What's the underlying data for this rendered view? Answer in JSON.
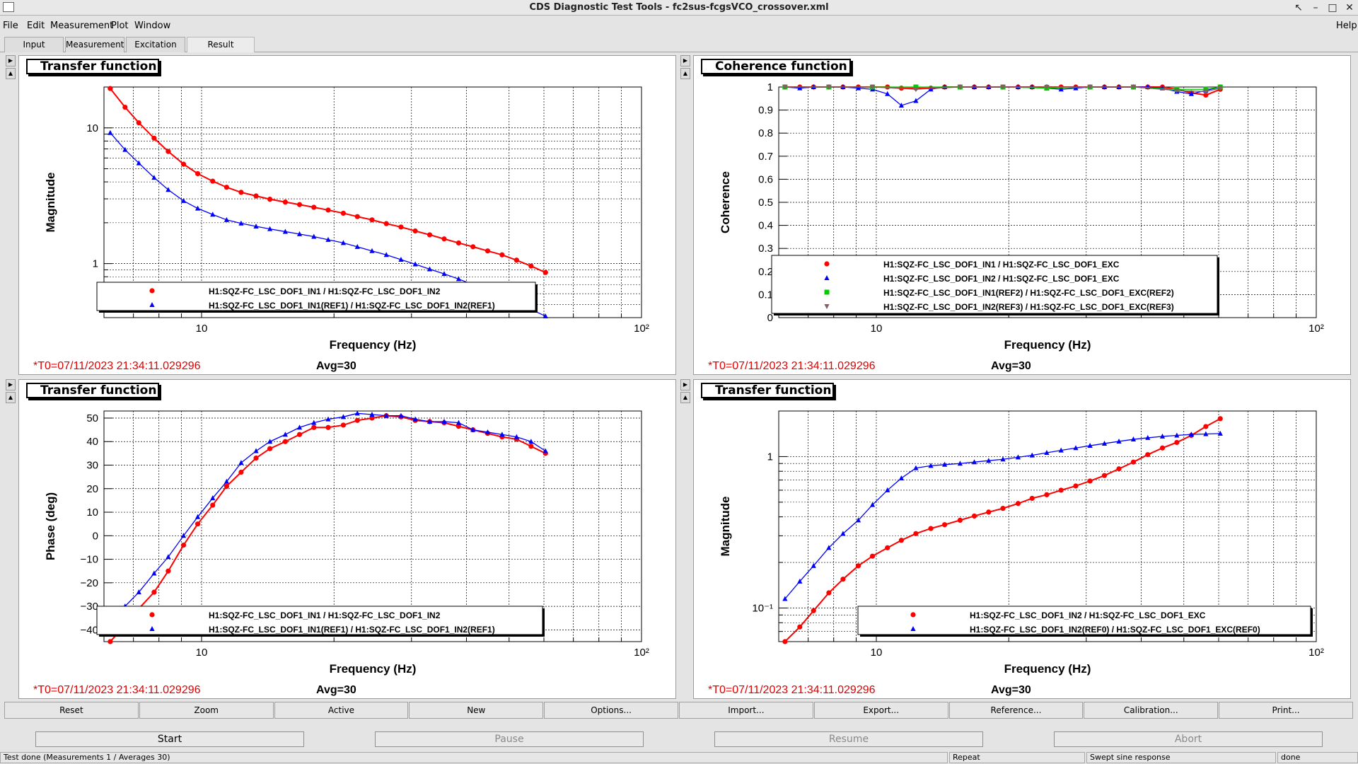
{
  "window": {
    "title": "CDS Diagnostic Test Tools - fc2sus-fcgsVCO_crossover.xml",
    "controls": [
      "↖",
      "–",
      "□",
      "✕"
    ]
  },
  "menu": {
    "items": [
      "File",
      "Edit",
      "Measurement",
      "Plot",
      "Window"
    ],
    "help": "Help"
  },
  "tabs": [
    "Input",
    "Measurement",
    "Excitation",
    "Result"
  ],
  "panels": [
    {
      "label": "Transfer function",
      "t0": "*T0=07/11/2023 21:34:11.029296",
      "avg": "Avg=30",
      "chart_data": {
        "type": "line",
        "xscale": "log",
        "yscale": "log",
        "xlim": [
          6,
          100
        ],
        "ylim": [
          0.4,
          20
        ],
        "xlabel": "Frequency (Hz)",
        "ylabel": "Magnitude",
        "xticklabels": [
          "10",
          "10²"
        ],
        "yticklabels": [
          "1",
          "10"
        ],
        "grid": true,
        "legend": "bottom-left",
        "series": [
          {
            "name": "H1:SQZ-FC_LSC_DOF1_IN1 / H1:SQZ-FC_LSC_DOF1_IN2",
            "color": "#ff0000",
            "marker": "circle",
            "x": [
              6.2,
              6.7,
              7.2,
              7.8,
              8.4,
              9.1,
              9.8,
              10.6,
              11.4,
              12.3,
              13.3,
              14.3,
              15.5,
              16.7,
              18.0,
              19.4,
              21.0,
              22.6,
              24.4,
              26.3,
              28.4,
              30.6,
              33.0,
              35.6,
              38.4,
              41.4,
              44.7,
              48.2,
              52.0,
              56.1,
              60.5
            ],
            "y": [
              19.5,
              14.2,
              10.9,
              8.4,
              6.7,
              5.4,
              4.6,
              4.05,
              3.65,
              3.35,
              3.15,
              2.98,
              2.84,
              2.72,
              2.6,
              2.48,
              2.35,
              2.22,
              2.1,
              1.97,
              1.86,
              1.74,
              1.63,
              1.52,
              1.42,
              1.33,
              1.24,
              1.16,
              1.06,
              0.96,
              0.86
            ]
          },
          {
            "name": "H1:SQZ-FC_LSC_DOF1_IN1(REF1) / H1:SQZ-FC_LSC_DOF1_IN2(REF1)",
            "color": "#0000ff",
            "marker": "triangle",
            "x": [
              6.2,
              6.7,
              7.2,
              7.8,
              8.4,
              9.1,
              9.8,
              10.6,
              11.4,
              12.3,
              13.3,
              14.3,
              15.5,
              16.7,
              18.0,
              19.4,
              21.0,
              22.6,
              24.4,
              26.3,
              28.4,
              30.6,
              33.0,
              35.6,
              38.4,
              41.4,
              44.7,
              48.2,
              52.0,
              56.1,
              60.5
            ],
            "y": [
              9.2,
              6.9,
              5.5,
              4.3,
              3.5,
              2.9,
              2.55,
              2.3,
              2.1,
              1.98,
              1.88,
              1.8,
              1.72,
              1.65,
              1.58,
              1.5,
              1.42,
              1.33,
              1.24,
              1.16,
              1.07,
              0.99,
              0.91,
              0.84,
              0.77,
              0.7,
              0.64,
              0.58,
              0.52,
              0.46,
              0.41
            ]
          }
        ]
      }
    },
    {
      "label": "Coherence function",
      "t0": "*T0=07/11/2023 21:34:11.029296",
      "avg": "Avg=30",
      "chart_data": {
        "type": "line",
        "xscale": "log",
        "yscale": "linear",
        "xlim": [
          6,
          100
        ],
        "ylim": [
          0,
          1
        ],
        "xlabel": "Frequency (Hz)",
        "ylabel": "Coherence",
        "xticklabels": [
          "10",
          "10²"
        ],
        "yticklabels": [
          "0",
          "0.1",
          "0.2",
          "0.3",
          "0.4",
          "0.5",
          "0.6",
          "0.7",
          "0.8",
          "0.9",
          "1"
        ],
        "grid": true,
        "legend": "bottom-left",
        "series": [
          {
            "name": "H1:SQZ-FC_LSC_DOF1_IN1 / H1:SQZ-FC_LSC_DOF1_EXC",
            "color": "#ff0000",
            "marker": "circle",
            "x": [
              6.2,
              6.7,
              7.2,
              7.8,
              8.4,
              9.1,
              9.8,
              10.6,
              11.4,
              12.3,
              13.3,
              14.3,
              15.5,
              16.7,
              18.0,
              19.4,
              21.0,
              22.6,
              24.4,
              26.3,
              28.4,
              30.6,
              33.0,
              35.6,
              38.4,
              41.4,
              44.7,
              48.2,
              52.0,
              56.1,
              60.5
            ],
            "y": [
              1.0,
              1.0,
              1.0,
              1.0,
              1.0,
              1.0,
              1.0,
              1.0,
              0.995,
              0.995,
              0.995,
              1.0,
              1.0,
              1.0,
              1.0,
              1.0,
              1.0,
              1.0,
              1.0,
              1.0,
              1.0,
              1.0,
              1.0,
              1.0,
              1.0,
              1.0,
              1.0,
              0.99,
              0.975,
              0.965,
              0.99
            ]
          },
          {
            "name": "H1:SQZ-FC_LSC_DOF1_IN2 / H1:SQZ-FC_LSC_DOF1_EXC",
            "color": "#0000ff",
            "marker": "triangle",
            "x": [
              6.2,
              6.7,
              7.2,
              7.8,
              8.4,
              9.1,
              9.8,
              10.6,
              11.4,
              12.3,
              13.3,
              14.3,
              15.5,
              16.7,
              18.0,
              19.4,
              21.0,
              22.6,
              24.4,
              26.3,
              28.4,
              30.6,
              33.0,
              35.6,
              38.4,
              41.4,
              44.7,
              48.2,
              52.0,
              56.1,
              60.5
            ],
            "y": [
              1.0,
              0.995,
              1.0,
              1.0,
              1.0,
              0.995,
              0.99,
              0.97,
              0.92,
              0.94,
              0.99,
              1.0,
              1.0,
              1.0,
              1.0,
              1.0,
              1.0,
              1.0,
              0.995,
              0.99,
              0.995,
              1.0,
              1.0,
              1.0,
              1.0,
              1.0,
              0.995,
              0.98,
              0.97,
              0.985,
              1.0
            ]
          },
          {
            "name": "H1:SQZ-FC_LSC_DOF1_IN1(REF2) / H1:SQZ-FC_LSC_DOF1_EXC(REF2)",
            "color": "#00cc00",
            "marker": "square",
            "x": [
              6.2,
              7.8,
              9.8,
              12.3,
              15.5,
              19.4,
              24.4,
              30.6,
              38.4,
              48.2,
              56.1,
              60.5
            ],
            "y": [
              1.0,
              1.0,
              1.0,
              1.0,
              1.0,
              1.0,
              0.995,
              1.0,
              1.0,
              0.99,
              0.99,
              1.0
            ]
          },
          {
            "name": "H1:SQZ-FC_LSC_DOF1_IN2(REF3) / H1:SQZ-FC_LSC_DOF1_EXC(REF3)",
            "color": "#806060",
            "marker": "triangle-down",
            "x": [
              6.2,
              7.8,
              9.8,
              12.3,
              15.5,
              19.4,
              24.4,
              30.6,
              38.4,
              48.2,
              56.1,
              60.5
            ],
            "y": [
              1.0,
              1.0,
              1.0,
              0.99,
              1.0,
              1.0,
              1.0,
              1.0,
              1.0,
              0.985,
              0.98,
              0.995
            ]
          }
        ]
      }
    },
    {
      "label": "Transfer function",
      "t0": "*T0=07/11/2023 21:34:11.029296",
      "avg": "Avg=30",
      "chart_data": {
        "type": "line",
        "xscale": "log",
        "yscale": "linear",
        "xlim": [
          6,
          100
        ],
        "ylim": [
          -45,
          53
        ],
        "xlabel": "Frequency (Hz)",
        "ylabel": "Phase (deg)",
        "xticklabels": [
          "10",
          "10²"
        ],
        "yticklabels": [
          "−40",
          "−30",
          "−20",
          "−10",
          "0",
          "10",
          "20",
          "30",
          "40",
          "50"
        ],
        "grid": true,
        "legend": "bottom-left",
        "series": [
          {
            "name": "H1:SQZ-FC_LSC_DOF1_IN1 / H1:SQZ-FC_LSC_DOF1_IN2",
            "color": "#ff0000",
            "marker": "circle",
            "x": [
              6.2,
              6.7,
              7.2,
              7.8,
              8.4,
              9.1,
              9.8,
              10.6,
              11.4,
              12.3,
              13.3,
              14.3,
              15.5,
              16.7,
              18.0,
              19.4,
              21.0,
              22.6,
              24.4,
              26.3,
              28.4,
              30.6,
              33.0,
              35.6,
              38.4,
              41.4,
              44.7,
              48.2,
              52.0,
              56.1,
              60.5
            ],
            "y": [
              -45,
              -38,
              -31,
              -24,
              -15,
              -4,
              5,
              13,
              21,
              27,
              33,
              37,
              40,
              43,
              46,
              46,
              47,
              49,
              50,
              51,
              50.5,
              49,
              48.5,
              48,
              46.5,
              45,
              43.5,
              42,
              41,
              38,
              35
            ]
          },
          {
            "name": "H1:SQZ-FC_LSC_DOF1_IN1(REF1) / H1:SQZ-FC_LSC_DOF1_IN2(REF1)",
            "color": "#0000ff",
            "marker": "triangle",
            "x": [
              6.2,
              6.7,
              7.2,
              7.8,
              8.4,
              9.1,
              9.8,
              10.6,
              11.4,
              12.3,
              13.3,
              14.3,
              15.5,
              16.7,
              18.0,
              19.4,
              21.0,
              22.6,
              24.4,
              26.3,
              28.4,
              30.6,
              33.0,
              35.6,
              38.4,
              41.4,
              44.7,
              48.2,
              52.0,
              56.1,
              60.5
            ],
            "y": [
              -36,
              -30,
              -24,
              -16,
              -9,
              0,
              8,
              16,
              23,
              31,
              36,
              40,
              43,
              46,
              48,
              49.5,
              50.5,
              52,
              51.5,
              51,
              51,
              49.5,
              48.5,
              48.5,
              48,
              45,
              44,
              43,
              42,
              40,
              36
            ]
          }
        ]
      }
    },
    {
      "label": "Transfer function",
      "t0": "*T0=07/11/2023 21:34:11.029296",
      "avg": "Avg=30",
      "chart_data": {
        "type": "line",
        "xscale": "log",
        "yscale": "log",
        "xlim": [
          6,
          100
        ],
        "ylim": [
          0.06,
          2.0
        ],
        "xlabel": "Frequency (Hz)",
        "ylabel": "Magnitude",
        "xticklabels": [
          "10",
          "10²"
        ],
        "yticklabels": [
          "10⁻¹",
          "1"
        ],
        "grid": true,
        "legend": "bottom-right",
        "series": [
          {
            "name": "H1:SQZ-FC_LSC_DOF1_IN2 / H1:SQZ-FC_LSC_DOF1_EXC",
            "color": "#ff0000",
            "marker": "circle",
            "x": [
              6.2,
              6.7,
              7.2,
              7.8,
              8.4,
              9.1,
              9.8,
              10.6,
              11.4,
              12.3,
              13.3,
              14.3,
              15.5,
              16.7,
              18.0,
              19.4,
              21.0,
              22.6,
              24.4,
              26.3,
              28.4,
              30.6,
              33.0,
              35.6,
              38.4,
              41.4,
              44.7,
              48.2,
              52.0,
              56.1,
              60.5
            ],
            "y": [
              0.06,
              0.075,
              0.096,
              0.126,
              0.155,
              0.19,
              0.22,
              0.25,
              0.28,
              0.31,
              0.335,
              0.355,
              0.38,
              0.405,
              0.43,
              0.455,
              0.49,
              0.53,
              0.56,
              0.6,
              0.64,
              0.69,
              0.75,
              0.83,
              0.92,
              1.03,
              1.14,
              1.24,
              1.38,
              1.58,
              1.78
            ]
          },
          {
            "name": "H1:SQZ-FC_LSC_DOF1_IN2(REF0) / H1:SQZ-FC_LSC_DOF1_EXC(REF0)",
            "color": "#0000ff",
            "marker": "triangle",
            "x": [
              6.2,
              6.7,
              7.2,
              7.8,
              8.4,
              9.1,
              9.8,
              10.6,
              11.4,
              12.3,
              13.3,
              14.3,
              15.5,
              16.7,
              18.0,
              19.4,
              21.0,
              22.6,
              24.4,
              26.3,
              28.4,
              30.6,
              33.0,
              35.6,
              38.4,
              41.4,
              44.7,
              48.2,
              52.0,
              56.1,
              60.5
            ],
            "y": [
              0.115,
              0.15,
              0.19,
              0.25,
              0.31,
              0.38,
              0.48,
              0.6,
              0.72,
              0.84,
              0.87,
              0.885,
              0.9,
              0.92,
              0.94,
              0.96,
              0.99,
              1.02,
              1.06,
              1.1,
              1.14,
              1.18,
              1.22,
              1.26,
              1.3,
              1.33,
              1.36,
              1.38,
              1.4,
              1.41,
              1.42
            ]
          }
        ]
      }
    }
  ],
  "controls": [
    "Reset",
    "Zoom",
    "Active",
    "New",
    "Options...",
    "Import...",
    "Export...",
    "Reference...",
    "Calibration...",
    "Print..."
  ],
  "actions": {
    "start": "Start",
    "pause": "Pause",
    "resume": "Resume",
    "abort": "Abort"
  },
  "status": {
    "message": "Test done (Measurements 1 / Averages 30)",
    "mode": "Repeat",
    "type": "Swept sine response",
    "state": "done"
  }
}
